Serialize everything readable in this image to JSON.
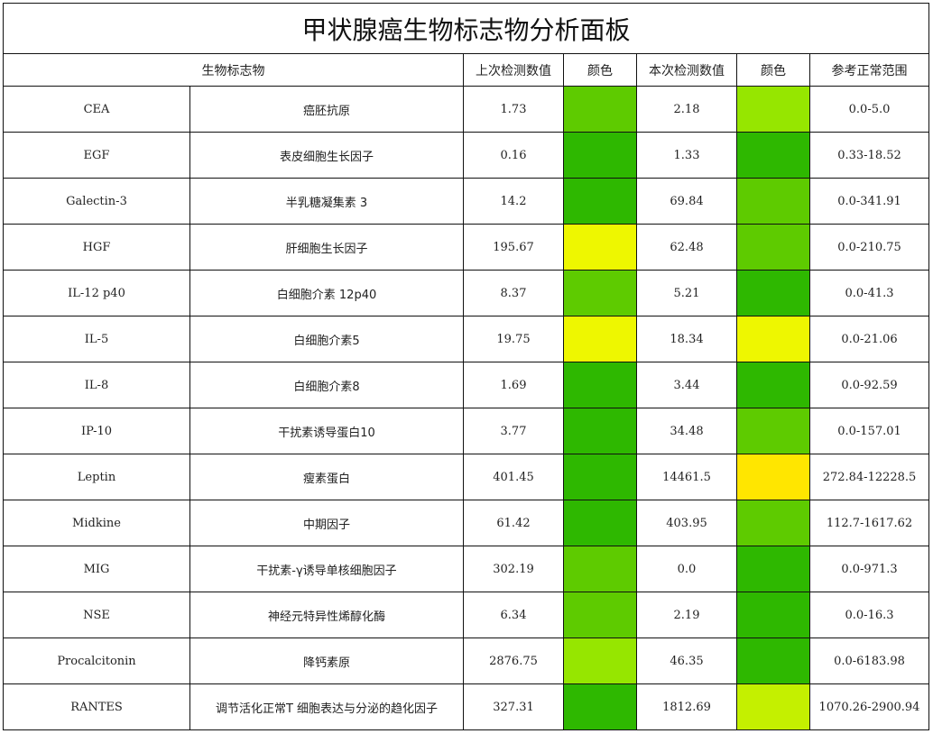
{
  "title": "甲状腺癌生物标志物分析面板",
  "headers": {
    "marker": "生物标志物",
    "prev_value": "上次检测数值",
    "prev_color": "颜色",
    "curr_value": "本次检测数值",
    "curr_color": "颜色",
    "range": "参考正常范围"
  },
  "rows": [
    {
      "code": "CEA",
      "name": "癌胚抗原",
      "prev": "1.73",
      "prev_color": "#5ecb00",
      "curr": "2.18",
      "curr_color": "#96e600",
      "range": "0.0-5.0"
    },
    {
      "code": "EGF",
      "name": "表皮细胞生长因子",
      "prev": "0.16",
      "prev_color": "#2eb800",
      "curr": "1.33",
      "curr_color": "#2eb800",
      "range": "0.33-18.52"
    },
    {
      "code": "Galectin-3",
      "name": "半乳糖凝集素 3",
      "prev": "14.2",
      "prev_color": "#2eb800",
      "curr": "69.84",
      "curr_color": "#5ecb00",
      "range": "0.0-341.91"
    },
    {
      "code": "HGF",
      "name": "肝细胞生长因子",
      "prev": "195.67",
      "prev_color": "#eef700",
      "curr": "62.48",
      "curr_color": "#5ecb00",
      "range": "0.0-210.75"
    },
    {
      "code": "IL-12 p40",
      "name": "白细胞介素 12p40",
      "prev": "8.37",
      "prev_color": "#5ecb00",
      "curr": "5.21",
      "curr_color": "#2eb800",
      "range": "0.0-41.3"
    },
    {
      "code": "IL-5",
      "name": "白细胞介素5",
      "prev": "19.75",
      "prev_color": "#eef700",
      "curr": "18.34",
      "curr_color": "#eef700",
      "range": "0.0-21.06"
    },
    {
      "code": "IL-8",
      "name": "白细胞介素8",
      "prev": "1.69",
      "prev_color": "#2eb800",
      "curr": "3.44",
      "curr_color": "#2eb800",
      "range": "0.0-92.59"
    },
    {
      "code": "IP-10",
      "name": "干扰素诱导蛋白10",
      "prev": "3.77",
      "prev_color": "#2eb800",
      "curr": "34.48",
      "curr_color": "#5ecb00",
      "range": "0.0-157.01"
    },
    {
      "code": "Leptin",
      "name": "瘦素蛋白",
      "prev": "401.45",
      "prev_color": "#2eb800",
      "curr": "14461.5",
      "curr_color": "#ffe600",
      "range": "272.84-12228.5"
    },
    {
      "code": "Midkine",
      "name": "中期因子",
      "prev": "61.42",
      "prev_color": "#2eb800",
      "curr": "403.95",
      "curr_color": "#5ecb00",
      "range": "112.7-1617.62"
    },
    {
      "code": "MIG",
      "name": "干扰素-γ诱导单核细胞因子",
      "prev": "302.19",
      "prev_color": "#5ecb00",
      "curr": "0.0",
      "curr_color": "#2eb800",
      "range": "0.0-971.3"
    },
    {
      "code": "NSE",
      "name": "神经元特异性烯醇化酶",
      "prev": "6.34",
      "prev_color": "#5ecb00",
      "curr": "2.19",
      "curr_color": "#2eb800",
      "range": "0.0-16.3"
    },
    {
      "code": "Procalcitonin",
      "name": "降钙素原",
      "prev": "2876.75",
      "prev_color": "#96e600",
      "curr": "46.35",
      "curr_color": "#2eb800",
      "range": "0.0-6183.98"
    },
    {
      "code": "RANTES",
      "name": "调节活化正常T 细胞表达与分泌的趋化因子",
      "prev": "327.31",
      "prev_color": "#2eb800",
      "curr": "1812.69",
      "curr_color": "#c4f000",
      "range": "1070.26-2900.94"
    }
  ]
}
